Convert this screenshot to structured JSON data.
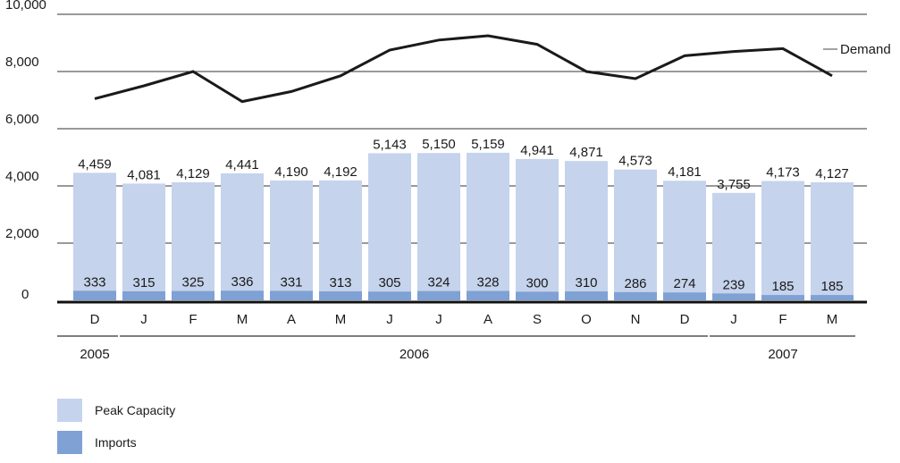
{
  "chart_data": {
    "type": "bar",
    "categories": [
      "D",
      "J",
      "F",
      "M",
      "A",
      "M",
      "J",
      "J",
      "A",
      "S",
      "O",
      "N",
      "D",
      "J",
      "F",
      "M"
    ],
    "year_groups": [
      {
        "label": "2005",
        "start": 0,
        "end": 0
      },
      {
        "label": "2006",
        "start": 1,
        "end": 12
      },
      {
        "label": "2007",
        "start": 13,
        "end": 15
      }
    ],
    "series": [
      {
        "name": "Peak Capacity",
        "kind": "bar",
        "values": [
          4459,
          4081,
          4129,
          4441,
          4190,
          4192,
          5143,
          5150,
          5159,
          4941,
          4871,
          4573,
          4181,
          3755,
          4173,
          4127
        ],
        "labels": [
          "4,459",
          "4,081",
          "4,129",
          "4,441",
          "4,190",
          "4,192",
          "5,143",
          "5,150",
          "5,159",
          "4,941",
          "4,871",
          "4,573",
          "4,181",
          "3,755",
          "4,173",
          "4,127"
        ]
      },
      {
        "name": "Imports",
        "kind": "bar",
        "values": [
          333,
          315,
          325,
          336,
          331,
          313,
          305,
          324,
          328,
          300,
          310,
          286,
          274,
          239,
          185,
          185
        ],
        "labels": [
          "333",
          "315",
          "325",
          "336",
          "331",
          "313",
          "305",
          "324",
          "328",
          "300",
          "310",
          "286",
          "274",
          "239",
          "185",
          "185"
        ]
      },
      {
        "name": "Demand",
        "kind": "line",
        "values": [
          7050,
          7500,
          8000,
          6950,
          7300,
          7850,
          8750,
          9100,
          9250,
          8950,
          8000,
          7750,
          8550,
          8700,
          8800,
          7850
        ]
      }
    ],
    "yticks": [
      0,
      2000,
      4000,
      6000,
      8000,
      10000
    ],
    "ytick_labels": [
      "0",
      "2,000",
      "4,000",
      "6,000",
      "8,000",
      "10,000"
    ],
    "ylim": [
      0,
      10000
    ],
    "grid": true,
    "colors": {
      "peak": "#c5d3ec",
      "imports": "#7fa1d4",
      "demand": "#1a1a1a",
      "grid": "#333333"
    },
    "legend_position": "bottom-left"
  }
}
